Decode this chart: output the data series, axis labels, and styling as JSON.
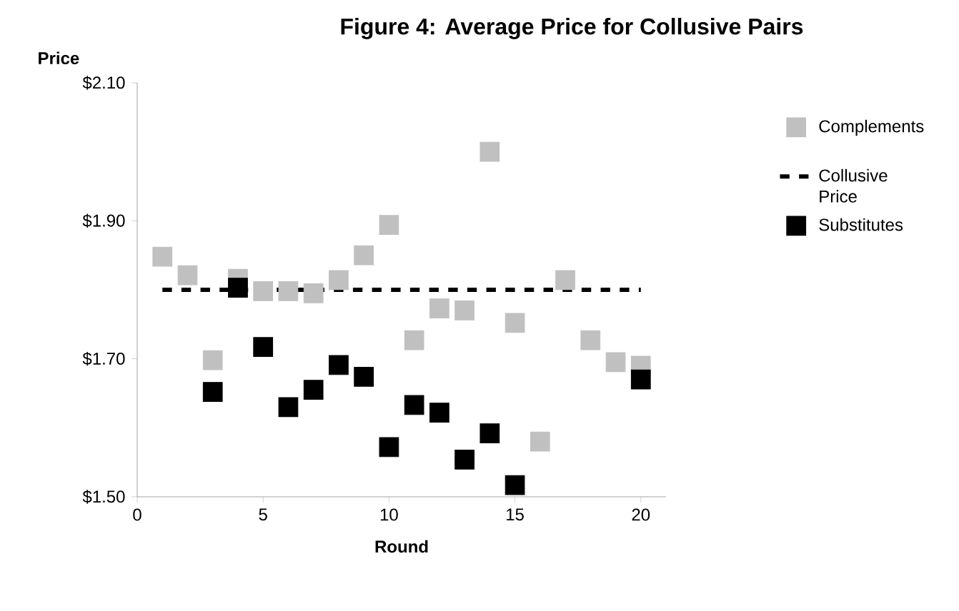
{
  "chart_data": {
    "type": "scatter",
    "title": "Figure 4: Average Price for Collusive Pairs",
    "xlabel": "Round",
    "ylabel": "Price",
    "x": [
      1,
      2,
      3,
      4,
      5,
      6,
      7,
      8,
      9,
      10,
      11,
      12,
      13,
      14,
      15,
      16,
      17,
      18,
      19,
      20
    ],
    "series": [
      {
        "name": "Complements",
        "color": "#c0c0c0",
        "marker": "square",
        "values": [
          1.848,
          1.821,
          1.698,
          1.816,
          1.798,
          1.798,
          1.795,
          1.814,
          1.85,
          1.894,
          1.727,
          1.773,
          1.77,
          2.0,
          1.752,
          1.58,
          1.814,
          1.727,
          1.695,
          1.69
        ]
      },
      {
        "name": "Collusive Price",
        "type": "line",
        "color": "#000000",
        "line_style": "dashed",
        "marker": "none",
        "x": [
          1,
          20
        ],
        "values": [
          1.8,
          1.8
        ]
      },
      {
        "name": "Substitutes",
        "color": "#000000",
        "marker": "square",
        "values": [
          null,
          null,
          1.652,
          1.803,
          1.717,
          1.63,
          1.655,
          1.691,
          1.674,
          1.572,
          1.633,
          1.622,
          1.554,
          1.592,
          1.517,
          null,
          null,
          null,
          null,
          1.67
        ]
      }
    ],
    "xlim": [
      0,
      21
    ],
    "xticks": [
      0,
      5,
      10,
      15,
      20
    ],
    "ylim": [
      1.5,
      2.1
    ],
    "yticks": [
      {
        "value": 1.5,
        "label": "$1.50"
      },
      {
        "value": 1.7,
        "label": "$1.70"
      },
      {
        "value": 1.9,
        "label": "$1.90"
      },
      {
        "value": 2.1,
        "label": "$2.10"
      }
    ],
    "grid": false,
    "legend": "right"
  }
}
